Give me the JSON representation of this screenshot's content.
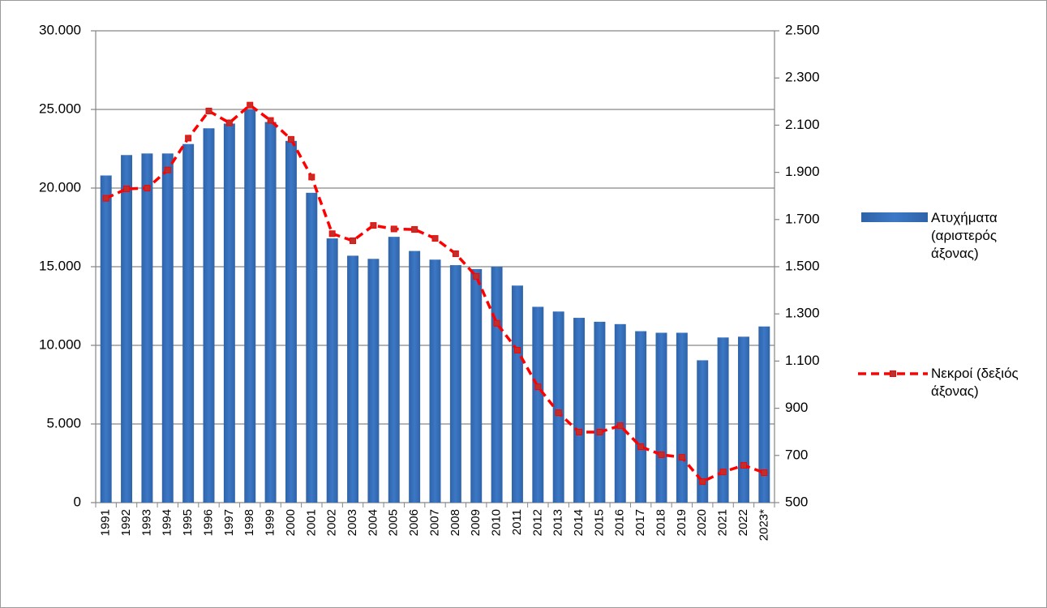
{
  "chart_data": {
    "type": "bar-line",
    "categories": [
      "1991",
      "1992",
      "1993",
      "1994",
      "1995",
      "1996",
      "1997",
      "1998",
      "1999",
      "2000",
      "2001",
      "2002",
      "2003",
      "2004",
      "2005",
      "2006",
      "2007",
      "2008",
      "2009",
      "2010",
      "2011",
      "2012",
      "2013",
      "2014",
      "2015",
      "2016",
      "2017",
      "2018",
      "2019",
      "2020",
      "2021",
      "2022",
      "2023*"
    ],
    "series": [
      {
        "name": "Ατυχήματα (αριστερός άξονας)",
        "type": "bar",
        "color": "#3c78c6",
        "values": [
          20800,
          22100,
          22200,
          22200,
          22800,
          23800,
          24100,
          25000,
          24200,
          23000,
          19700,
          16800,
          15700,
          15500,
          16900,
          16000,
          15450,
          15100,
          14850,
          15000,
          13800,
          12450,
          12150,
          11750,
          11500,
          11350,
          10900,
          10800,
          10800,
          9050,
          10500,
          10550,
          11200
        ]
      },
      {
        "name": "Νεκροί (δεξιός άξονας)",
        "type": "line",
        "axis": "y2",
        "color": "#ff0000",
        "values": [
          1790,
          1830,
          1833,
          1910,
          2045,
          2160,
          2110,
          2185,
          2120,
          2040,
          1880,
          1640,
          1610,
          1675,
          1660,
          1658,
          1620,
          1555,
          1459,
          1260,
          1146,
          991,
          881,
          799,
          799,
          826,
          737,
          703,
          692,
          589,
          630,
          658,
          627
        ]
      }
    ],
    "ylim": [
      0,
      30000
    ],
    "yticks": [
      0,
      {
        "value": 5000,
        "label": "5.000"
      },
      {
        "value": 10000,
        "label": "10.000"
      },
      {
        "value": 15000,
        "label": "15.000"
      },
      {
        "value": 20000,
        "label": "20.000"
      },
      {
        "value": 25000,
        "label": "25.000"
      },
      {
        "value": 30000,
        "label": "30.000"
      }
    ],
    "y2lim": [
      500,
      2500
    ],
    "y2ticks": [
      500,
      700,
      900,
      {
        "value": 1100,
        "label": "1.100"
      },
      {
        "value": 1300,
        "label": "1.300"
      },
      {
        "value": 1500,
        "label": "1.500"
      },
      {
        "value": 1700,
        "label": "1.700"
      },
      {
        "value": 1900,
        "label": "1.900"
      },
      {
        "value": 2100,
        "label": "2.100"
      },
      {
        "value": 2300,
        "label": "2.300"
      },
      {
        "value": 2500,
        "label": "2.500"
      }
    ],
    "grid": true
  }
}
